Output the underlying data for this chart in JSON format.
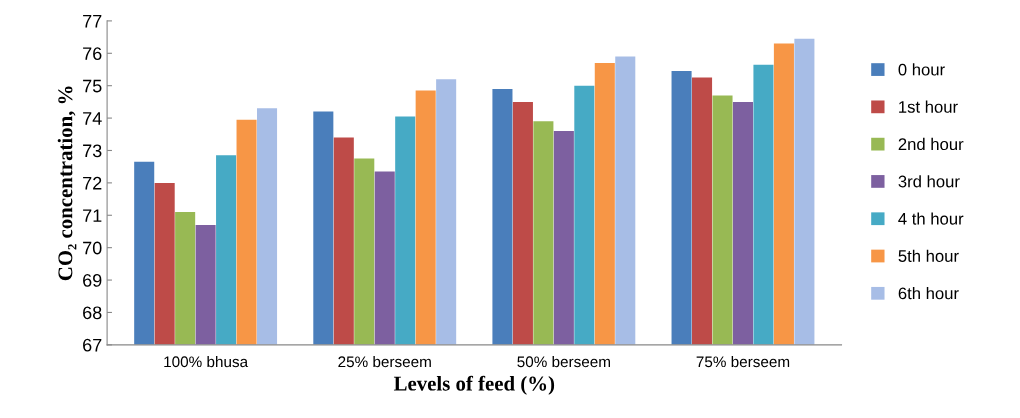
{
  "chart_data": {
    "type": "bar",
    "xlabel": "Levels of feed (%)",
    "ylabel": "CO₂ concentration, %",
    "categories": [
      "100% bhusa",
      "25% berseem",
      "50% berseem",
      "75% berseem"
    ],
    "series": [
      {
        "name": "0 hour",
        "color": "#4a7ebb",
        "values": [
          72.65,
          74.2,
          74.9,
          75.45
        ]
      },
      {
        "name": "1st hour",
        "color": "#be4b48",
        "values": [
          72.0,
          73.4,
          74.5,
          75.25
        ]
      },
      {
        "name": "2nd hour",
        "color": "#98b954",
        "values": [
          71.1,
          72.75,
          73.9,
          74.7
        ]
      },
      {
        "name": "3rd hour",
        "color": "#7d60a0",
        "values": [
          70.7,
          72.35,
          73.6,
          74.5
        ]
      },
      {
        "name": "4 th hour",
        "color": "#46aac5",
        "values": [
          72.85,
          74.05,
          75.0,
          75.65
        ]
      },
      {
        "name": "5th hour",
        "color": "#f79646",
        "values": [
          73.95,
          74.85,
          75.7,
          76.3
        ]
      },
      {
        "name": "6th hour",
        "color": "#a7bde6",
        "values": [
          74.3,
          75.2,
          75.9,
          76.45
        ]
      }
    ],
    "ylim": [
      67,
      77
    ],
    "yticks": [
      67,
      68,
      69,
      70,
      71,
      72,
      73,
      74,
      75,
      76,
      77
    ],
    "grid": false,
    "legend": "right"
  }
}
